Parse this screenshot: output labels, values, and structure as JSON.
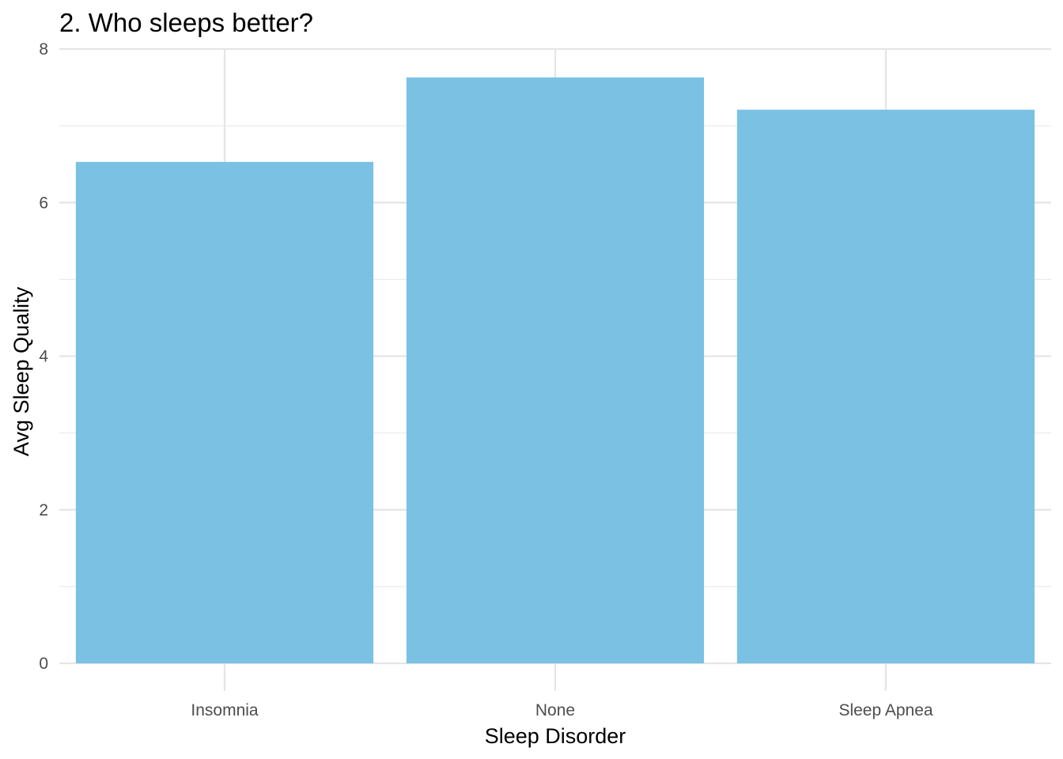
{
  "chart_data": {
    "type": "bar",
    "title": "2. Who sleeps better?",
    "xlabel": "Sleep Disorder",
    "ylabel": "Avg Sleep Quality",
    "categories": [
      "Insomnia",
      "None",
      "Sleep Apnea"
    ],
    "values": [
      6.53,
      7.63,
      7.21
    ],
    "ylim": [
      0,
      8
    ],
    "yticks": [
      "0",
      "2",
      "4",
      "6",
      "8"
    ],
    "grid": true,
    "legend": "none",
    "bar_color": "#7AC1E4"
  }
}
